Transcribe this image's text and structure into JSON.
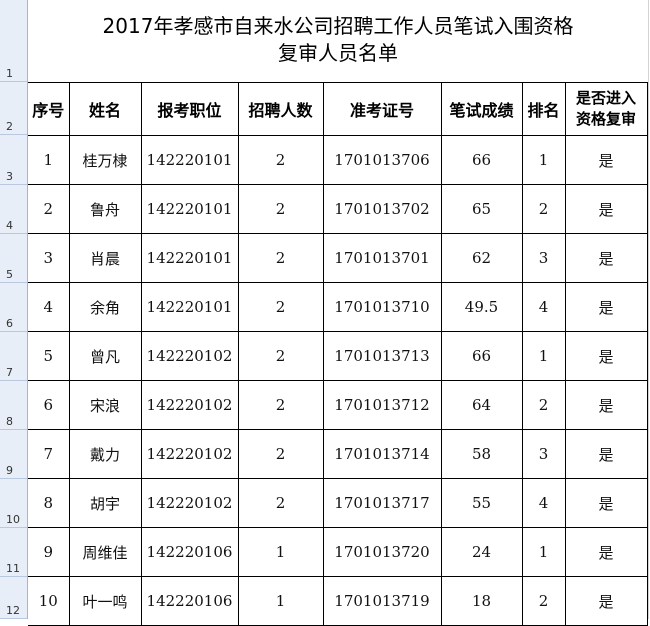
{
  "title_line1": "2017年孝感市自来水公司招聘工作人员笔试入围资格",
  "title_line2": "复审人员名单",
  "row_numbers": [
    "1",
    "2",
    "3",
    "4",
    "5",
    "6",
    "7",
    "8",
    "9",
    "10",
    "11",
    "12"
  ],
  "headers": [
    "序号",
    "姓名",
    "报考职位",
    "招聘人数",
    "准考证号",
    "笔试成绩",
    "排名",
    "是否进入\n资格复审"
  ],
  "header_last_line1": "是否进入",
  "header_last_line2": "资格复审",
  "rows": [
    [
      "1",
      "桂万棣",
      "142220101",
      "2",
      "1701013706",
      "66",
      "1",
      "是"
    ],
    [
      "2",
      "鲁舟",
      "142220101",
      "2",
      "1701013702",
      "65",
      "2",
      "是"
    ],
    [
      "3",
      "肖晨",
      "142220101",
      "2",
      "1701013701",
      "62",
      "3",
      "是"
    ],
    [
      "4",
      "余角",
      "142220101",
      "2",
      "1701013710",
      "49.5",
      "4",
      "是"
    ],
    [
      "5",
      "曾凡",
      "142220102",
      "2",
      "1701013713",
      "66",
      "1",
      "是"
    ],
    [
      "6",
      "宋浪",
      "142220102",
      "2",
      "1701013712",
      "64",
      "2",
      "是"
    ],
    [
      "7",
      "戴力",
      "142220102",
      "2",
      "1701013714",
      "58",
      "3",
      "是"
    ],
    [
      "8",
      "胡宇",
      "142220102",
      "2",
      "1701013717",
      "55",
      "4",
      "是"
    ],
    [
      "9",
      "周维佳",
      "142220106",
      "1",
      "1701013720",
      "24",
      "1",
      "是"
    ],
    [
      "10",
      "叶一鸣",
      "142220106",
      "1",
      "1701013719",
      "18",
      "2",
      "是"
    ]
  ]
}
